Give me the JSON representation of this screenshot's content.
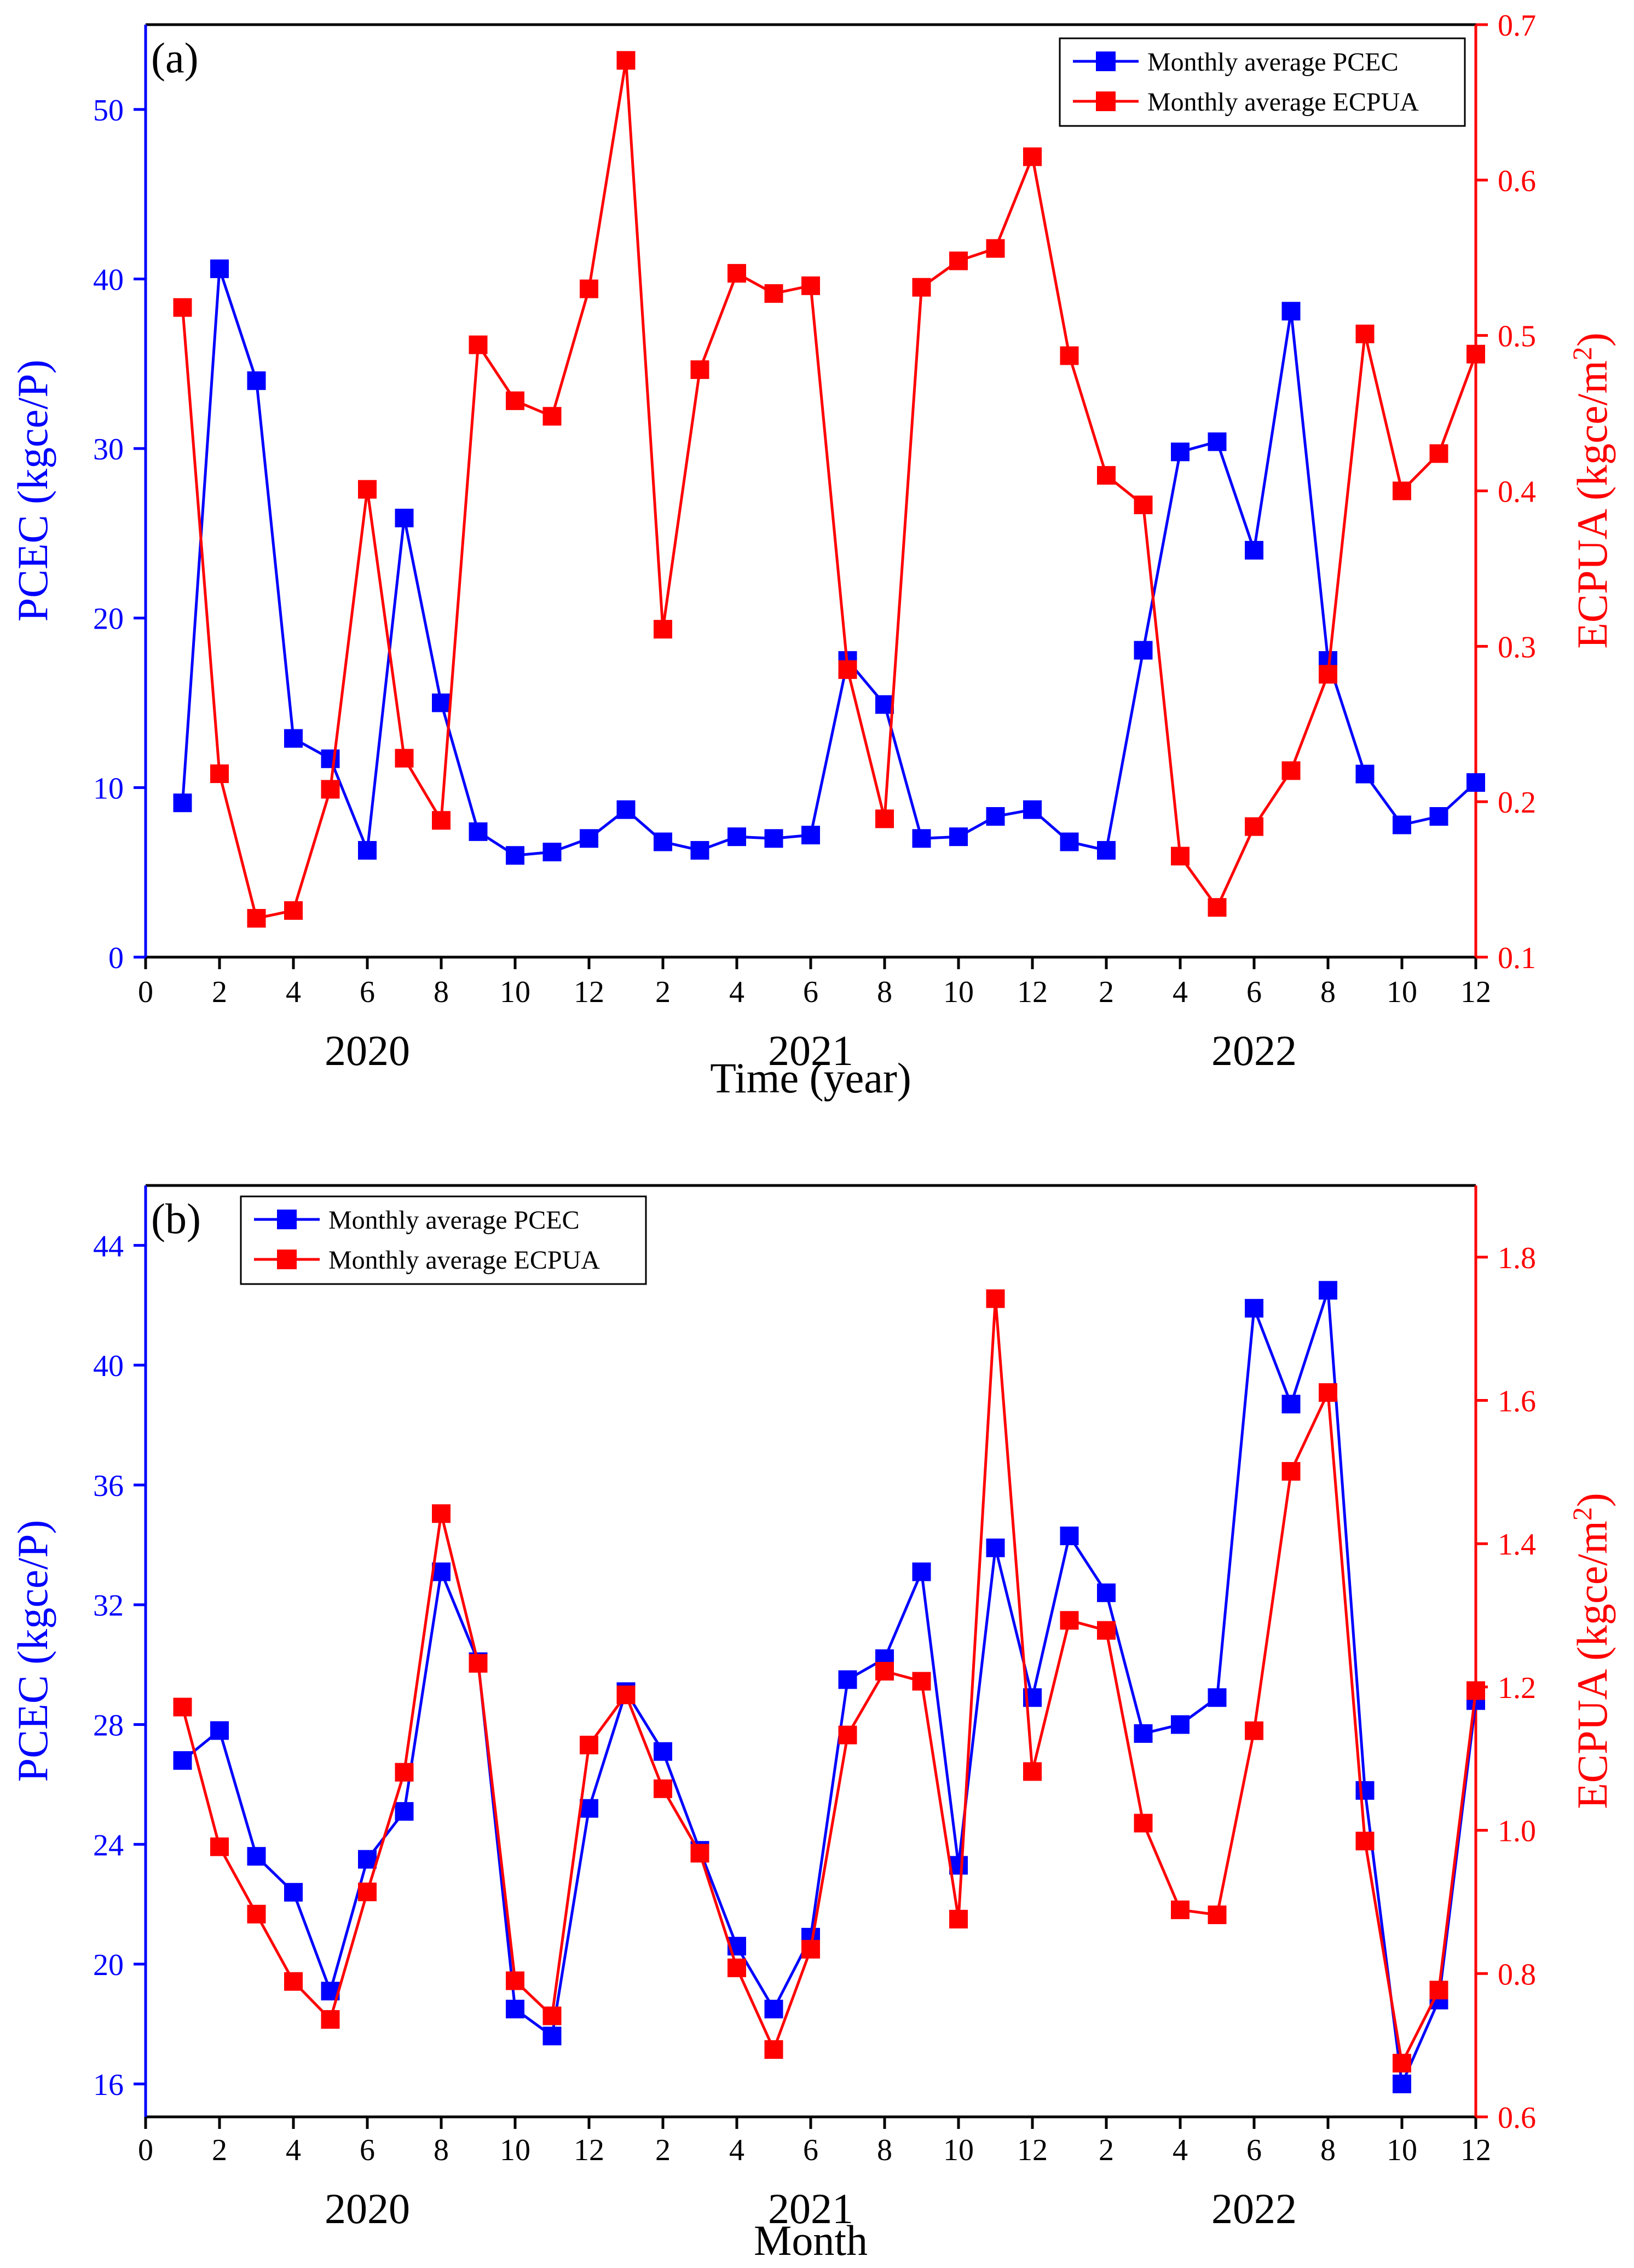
{
  "chart_data": [
    {
      "type": "line",
      "panel_label": "(a)",
      "xlabel": "Time (year)",
      "ylabel_left": "PCEC (kgce/P)",
      "ylabel_right_base": "ECPUA (kgce/m",
      "ylabel_right_sup": "2",
      "ylabel_right_close": ")",
      "xlim": [
        0,
        36
      ],
      "ylim_left": [
        0,
        55
      ],
      "ylim_right": [
        0.1,
        0.7
      ],
      "x_ticks": [
        0,
        2,
        4,
        6,
        8,
        10,
        12,
        14,
        16,
        18,
        20,
        22,
        24,
        26,
        28,
        30,
        32,
        34,
        36
      ],
      "x_tick_labels": [
        "0",
        "2",
        "4",
        "6",
        "8",
        "10",
        "12",
        "2",
        "4",
        "6",
        "8",
        "10",
        "12",
        "2",
        "4",
        "6",
        "8",
        "10",
        "12"
      ],
      "y_ticks_left": [
        0,
        10,
        20,
        30,
        40,
        50
      ],
      "y_tick_labels_left": [
        "0",
        "10",
        "20",
        "30",
        "40",
        "50"
      ],
      "y_ticks_right": [
        0.1,
        0.2,
        0.3,
        0.4,
        0.5,
        0.6,
        0.7
      ],
      "y_tick_labels_right": [
        "0.1",
        "0.2",
        "0.3",
        "0.4",
        "0.5",
        "0.6",
        "0.7"
      ],
      "year_labels": [
        {
          "x": 6,
          "text": "2020"
        },
        {
          "x": 18,
          "text": "2021"
        },
        {
          "x": 30,
          "text": "2022"
        }
      ],
      "legend_position": "top-right",
      "legend": [
        "Monthly average PCEC",
        "Monthly average ECPUA"
      ],
      "x": [
        1,
        2,
        3,
        4,
        5,
        6,
        7,
        8,
        9,
        10,
        11,
        12,
        13,
        14,
        15,
        16,
        17,
        18,
        19,
        20,
        21,
        22,
        23,
        24,
        25,
        26,
        27,
        28,
        29,
        30,
        31,
        32,
        33,
        34,
        35,
        36
      ],
      "series": [
        {
          "name": "Monthly average PCEC",
          "axis": "left",
          "color": "#0000ff",
          "values": [
            9.1,
            40.6,
            34.0,
            12.9,
            11.7,
            6.3,
            25.9,
            15.0,
            7.4,
            6.0,
            6.2,
            7.0,
            8.7,
            6.8,
            6.3,
            7.1,
            7.0,
            7.2,
            17.5,
            14.9,
            7.0,
            7.1,
            8.3,
            8.7,
            6.8,
            6.3,
            18.1,
            29.8,
            30.4,
            24.0,
            38.1,
            17.5,
            10.8,
            7.8,
            8.3,
            10.3
          ]
        },
        {
          "name": "Monthly average ECPUA",
          "axis": "right",
          "color": "#ff0000",
          "values": [
            0.518,
            0.218,
            0.125,
            0.13,
            0.208,
            0.401,
            0.228,
            0.188,
            0.494,
            0.458,
            0.448,
            0.53,
            0.677,
            0.311,
            0.478,
            0.54,
            0.527,
            0.532,
            0.285,
            0.189,
            0.531,
            0.548,
            0.556,
            0.615,
            0.487,
            0.41,
            0.391,
            0.165,
            0.132,
            0.184,
            0.22,
            0.282,
            0.501,
            0.4,
            0.424,
            0.488
          ]
        }
      ]
    },
    {
      "type": "line",
      "panel_label": "(b)",
      "xlabel": "Month",
      "ylabel_left": "PCEC (kgce/P)",
      "ylabel_right_base": "ECPUA (kgce/m",
      "ylabel_right_sup": "2",
      "ylabel_right_close": ")",
      "xlim": [
        0,
        36
      ],
      "ylim_left": [
        14.9,
        46
      ],
      "ylim_right": [
        0.6,
        1.9
      ],
      "x_ticks": [
        0,
        2,
        4,
        6,
        8,
        10,
        12,
        14,
        16,
        18,
        20,
        22,
        24,
        26,
        28,
        30,
        32,
        34,
        36
      ],
      "x_tick_labels": [
        "0",
        "2",
        "4",
        "6",
        "8",
        "10",
        "12",
        "2",
        "4",
        "6",
        "8",
        "10",
        "12",
        "2",
        "4",
        "6",
        "8",
        "10",
        "12"
      ],
      "y_ticks_left": [
        16,
        20,
        24,
        28,
        32,
        36,
        40,
        44
      ],
      "y_tick_labels_left": [
        "16",
        "20",
        "24",
        "28",
        "32",
        "36",
        "40",
        "44"
      ],
      "y_ticks_right": [
        0.6,
        0.8,
        1.0,
        1.2,
        1.4,
        1.6,
        1.8
      ],
      "y_tick_labels_right": [
        "0.6",
        "0.8",
        "1.0",
        "1.2",
        "1.4",
        "1.6",
        "1.8"
      ],
      "year_labels": [
        {
          "x": 6,
          "text": "2020"
        },
        {
          "x": 18,
          "text": "2021"
        },
        {
          "x": 30,
          "text": "2022"
        }
      ],
      "legend_position": "top-left",
      "legend": [
        "Monthly average PCEC",
        "Monthly average ECPUA"
      ],
      "x": [
        1,
        2,
        3,
        4,
        5,
        6,
        7,
        8,
        9,
        10,
        11,
        12,
        13,
        14,
        15,
        16,
        17,
        18,
        19,
        20,
        21,
        22,
        23,
        24,
        25,
        26,
        27,
        28,
        29,
        30,
        31,
        32,
        33,
        34,
        35,
        36
      ],
      "series": [
        {
          "name": "Monthly average PCEC",
          "axis": "left",
          "color": "#0000ff",
          "values": [
            26.8,
            27.8,
            23.6,
            22.4,
            19.1,
            23.5,
            25.1,
            33.1,
            30.1,
            18.5,
            17.6,
            25.2,
            29.1,
            27.1,
            23.8,
            20.6,
            18.5,
            20.9,
            29.5,
            30.2,
            33.1,
            23.3,
            33.9,
            28.9,
            34.3,
            32.4,
            27.7,
            28.0,
            28.9,
            41.9,
            38.7,
            42.5,
            25.8,
            16.0,
            18.8,
            28.8
          ]
        },
        {
          "name": "Monthly average ECPUA",
          "axis": "right",
          "color": "#ff0000",
          "values": [
            1.172,
            0.977,
            0.883,
            0.789,
            0.736,
            0.914,
            1.081,
            1.442,
            1.233,
            0.79,
            0.741,
            1.119,
            1.189,
            1.058,
            0.968,
            0.808,
            0.694,
            0.834,
            1.133,
            1.222,
            1.208,
            0.876,
            1.742,
            1.082,
            1.293,
            1.279,
            1.01,
            0.889,
            0.882,
            1.139,
            1.501,
            1.611,
            0.985,
            0.675,
            0.777,
            1.195
          ]
        }
      ]
    }
  ]
}
